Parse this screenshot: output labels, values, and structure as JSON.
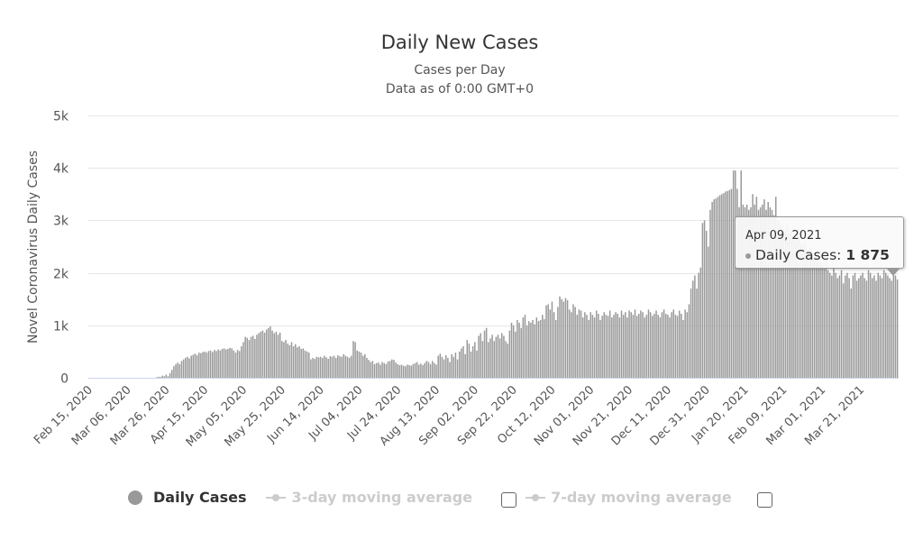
{
  "chart_data": {
    "type": "bar",
    "title": "Daily New Cases",
    "subtitle_lines": [
      "Cases per Day",
      "Data as of 0:00 GMT+0"
    ],
    "ylabel": "Novel Coronavirus Daily Cases",
    "xlabel": "",
    "ylim": [
      0,
      5000
    ],
    "y_ticks": [
      {
        "v": 0,
        "label": "0"
      },
      {
        "v": 1000,
        "label": "1k"
      },
      {
        "v": 2000,
        "label": "2k"
      },
      {
        "v": 3000,
        "label": "3k"
      },
      {
        "v": 4000,
        "label": "4k"
      },
      {
        "v": 5000,
        "label": "5k"
      }
    ],
    "x_first": "Feb 15, 2020",
    "x_last": "Apr 09, 2021",
    "x_ticks": [
      "Feb 15, 2020",
      "Mar 06, 2020",
      "Mar 26, 2020",
      "Apr 15, 2020",
      "May 05, 2020",
      "May 25, 2020",
      "Jun 14, 2020",
      "Jul 04, 2020",
      "Jul 24, 2020",
      "Aug 13, 2020",
      "Sep 02, 2020",
      "Sep 22, 2020",
      "Oct 12, 2020",
      "Nov 01, 2020",
      "Nov 21, 2020",
      "Dec 11, 2020",
      "Dec 31, 2020",
      "Jan 20, 2021",
      "Feb 09, 2021",
      "Mar 01, 2021",
      "Mar 21, 2021"
    ],
    "grid": true,
    "series": [
      {
        "name": "Daily Cases",
        "color": "#999999",
        "values": [
          0,
          0,
          0,
          0,
          0,
          0,
          0,
          0,
          0,
          0,
          0,
          0,
          0,
          0,
          0,
          0,
          0,
          0,
          0,
          0,
          0,
          0,
          0,
          0,
          0,
          0,
          0,
          0,
          0,
          0,
          0,
          0,
          0,
          0,
          0,
          10,
          20,
          15,
          40,
          30,
          60,
          30,
          90,
          150,
          220,
          260,
          290,
          260,
          320,
          350,
          380,
          400,
          370,
          420,
          440,
          460,
          430,
          480,
          470,
          490,
          500,
          480,
          510,
          520,
          490,
          530,
          510,
          540,
          520,
          550,
          560,
          540,
          550,
          570,
          560,
          520,
          480,
          530,
          510,
          600,
          680,
          780,
          760,
          720,
          780,
          800,
          740,
          820,
          850,
          880,
          900,
          860,
          920,
          950,
          980,
          900,
          850,
          880,
          820,
          860,
          700,
          680,
          720,
          650,
          620,
          680,
          600,
          640,
          580,
          600,
          550,
          560,
          520,
          500,
          480,
          350,
          380,
          360,
          400,
          390,
          400,
          380,
          420,
          390,
          360,
          410,
          400,
          420,
          380,
          430,
          410,
          400,
          450,
          420,
          400,
          380,
          420,
          700,
          680,
          520,
          500,
          480,
          420,
          450,
          380,
          340,
          300,
          320,
          260,
          280,
          290,
          250,
          300,
          280,
          260,
          310,
          320,
          350,
          340,
          290,
          260,
          240,
          250,
          230,
          220,
          250,
          240,
          230,
          260,
          280,
          300,
          250,
          270,
          240,
          280,
          320,
          300,
          260,
          320,
          280,
          250,
          420,
          460,
          400,
          350,
          430,
          380,
          300,
          450,
          400,
          480,
          350,
          500,
          560,
          600,
          450,
          720,
          650,
          500,
          600,
          680,
          520,
          800,
          850,
          700,
          900,
          950,
          680,
          750,
          820,
          700,
          780,
          820,
          750,
          850,
          800,
          700,
          650,
          900,
          1050,
          1000,
          880,
          1100,
          1050,
          950,
          1150,
          1200,
          1000,
          1080,
          1050,
          1100,
          1020,
          1150,
          1080,
          1100,
          1200,
          1120,
          1380,
          1400,
          1300,
          1450,
          1250,
          1100,
          1350,
          1550,
          1500,
          1450,
          1520,
          1480,
          1300,
          1250,
          1400,
          1350,
          1200,
          1300,
          1280,
          1150,
          1250,
          1200,
          1100,
          1250,
          1200,
          1150,
          1280,
          1220,
          1100,
          1180,
          1250,
          1200,
          1180,
          1280,
          1150,
          1200,
          1250,
          1220,
          1150,
          1280,
          1200,
          1250,
          1150,
          1280,
          1250,
          1200,
          1300,
          1180,
          1220,
          1280,
          1250,
          1150,
          1200,
          1300,
          1250,
          1180,
          1220,
          1280,
          1200,
          1150,
          1250,
          1300,
          1220,
          1200,
          1150,
          1250,
          1300,
          1200,
          1180,
          1280,
          1220,
          1100,
          1300,
          1250,
          1400,
          1700,
          1850,
          1950,
          1700,
          2000,
          2100,
          2950,
          3000,
          2800,
          2500,
          3200,
          3350,
          3400,
          3420,
          3450,
          3480,
          3500,
          3520,
          3550,
          3560,
          3580,
          3600,
          3950,
          3950,
          3600,
          3250,
          3950,
          3300,
          3250,
          3300,
          3200,
          3250,
          3500,
          3300,
          3450,
          3200,
          3250,
          3300,
          3400,
          3200,
          3350,
          3250,
          3200,
          3100,
          3450,
          3000,
          2950,
          2900,
          2850,
          2800,
          2900,
          2750,
          2800,
          2700,
          2600,
          2650,
          2700,
          2550,
          2500,
          2600,
          2450,
          2400,
          2500,
          2350,
          2300,
          2400,
          2250,
          2200,
          2150,
          2100,
          2200,
          2050,
          2000,
          1950,
          2100,
          2000,
          1900,
          1950,
          2050,
          1800,
          1950,
          2000,
          1900,
          1700,
          1950,
          2000,
          1850,
          1900,
          1950,
          2000,
          1900,
          1850,
          2050,
          2000,
          1900,
          1950,
          1850,
          2000,
          1950,
          1900,
          2050,
          2000,
          1950,
          1900,
          1850,
          2000,
          1950,
          1875
        ]
      }
    ],
    "legend_placement": "bottom"
  },
  "legend": {
    "items": [
      {
        "label": "Daily Cases",
        "color": "#999999",
        "active": true
      },
      {
        "label": "3-day moving average",
        "color": "#cccccc",
        "active": false,
        "checkbox_checked": false
      },
      {
        "label": "7-day moving average",
        "color": "#cccccc",
        "active": false,
        "checkbox_checked": false
      }
    ]
  },
  "tooltip": {
    "date": "Apr 09, 2021",
    "series_label": "Daily Cases: ",
    "value": "1 875"
  }
}
